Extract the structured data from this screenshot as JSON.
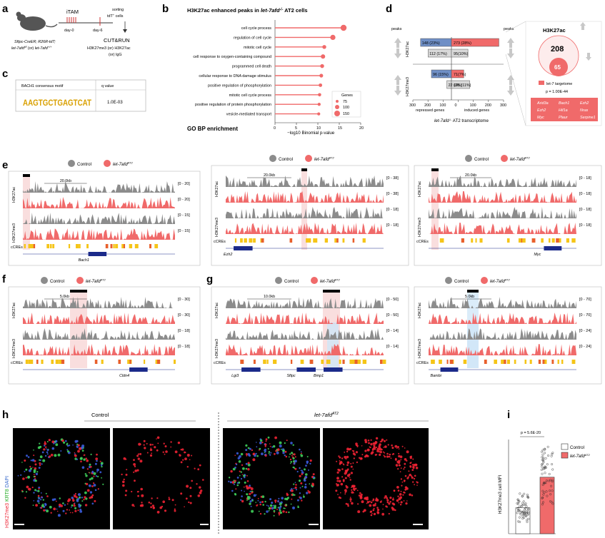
{
  "panels": {
    "a": "a",
    "b": "b",
    "c": "c",
    "d": "d",
    "e": "e",
    "f": "f",
    "g": "g",
    "h": "h",
    "i": "i"
  },
  "a": {
    "itam": "iTAM",
    "day0": "day-0",
    "day6": "day-6",
    "sorting": "sorting",
    "cells": "tdT",
    "cells_sup": "+",
    "cells_tail": " cells",
    "geno1": "Sftpc-CreER; R26R-tdT;",
    "geno2_a": "let-7afd",
    "geno2_b": " (or) ",
    "geno2_c": "let-7afd",
    "geno_sup1": "f/f",
    "geno_sup2": "+/+",
    "cutrun": "CUT&RUN",
    "marks": "H3K27me3 (or) H3K27ac",
    "igg": "(or) IgG"
  },
  "b": {
    "title_a": "H3K27ac enhanced peaks in ",
    "title_b": "let-7afd",
    "title_sup": "-/-",
    "title_c": " AT2 cells",
    "xlabel": "−log10 Binomial p-value",
    "xlabel2": "GO BP enrichment",
    "legend_title": "Genes",
    "legend_vals": [
      "75",
      "100",
      "150"
    ],
    "xticks": [
      "0",
      "5",
      "10",
      "15",
      "20"
    ]
  },
  "b_chart": {
    "chart_data": {
      "type": "lollipop",
      "title": "H3K27ac enhanced peaks in let-7afd-/- AT2 cells",
      "xlabel": "-log10 Binomial p-value",
      "xlim": [
        0,
        20
      ],
      "categories": [
        "cell cycle process",
        "regulation of cell cycle",
        "mitotic cell cycle",
        "cell response to oxygen-containing compound",
        "programmed cell death",
        "cellular response to DNA damage stimulus",
        "positive regulation of phosphorylation",
        "mitotic cell cycle process",
        "positive regulation of protein phosphorylation",
        "vesicle-mediated transport"
      ],
      "values": [
        16.0,
        13.5,
        11.5,
        11.2,
        11.0,
        10.8,
        10.6,
        10.4,
        10.3,
        10.2
      ],
      "sizes": [
        150,
        130,
        100,
        110,
        100,
        95,
        90,
        85,
        80,
        80
      ]
    }
  },
  "c": {
    "motif_header": "BACH1 consensus motif",
    "q_header": "q value",
    "q_value": "1.0E-03",
    "motif_seq": "AAGTGCTGAGTCAT"
  },
  "d": {
    "peaks_left": "peaks",
    "peaks_right": "peaks",
    "h3k27ac": "H3K27ac",
    "h3k27me3": "H3K27me3",
    "repressed": "repressed genes",
    "induced": "induced genes",
    "xticks": [
      "300",
      "200",
      "100",
      "0",
      "100",
      "200",
      "300"
    ],
    "transcriptome_a": "let-7afd",
    "transcriptome_sup": "-/-",
    "transcriptome_b": " AT2 transcriptome",
    "venn_title": "H3K27ac",
    "venn_big": "208",
    "venn_small": "65",
    "legend_target": "let-7 targetome",
    "pvalue": "p = 1.00E-44",
    "genes": [
      "Arid3a",
      "Bach1",
      "Ezh2",
      "Ezh2",
      "Hif1a",
      "Nras",
      "Myc",
      "Plaur",
      "Serpine1"
    ]
  },
  "d_chart": {
    "chart_data": {
      "type": "bar",
      "rows": [
        {
          "mark": "H3K27ac",
          "peaks": "up",
          "repressed": 148,
          "repressed_label": "148 (23%)",
          "induced": 273,
          "induced_label": "273 (28%)"
        },
        {
          "mark": "H3K27ac",
          "peaks": "down",
          "repressed": 112,
          "repressed_label": "112 (17%)",
          "induced": 95,
          "induced_label": "95(10%)"
        },
        {
          "mark": "H3K27me3",
          "peaks": "up",
          "repressed": 96,
          "repressed_label": "96 (15%)",
          "induced": 71,
          "induced_label": "71(7%)"
        },
        {
          "mark": "H3K27me3",
          "peaks": "down",
          "repressed": 22,
          "repressed_label": "22 (3%)",
          "induced": 105,
          "induced_label": "105 (11%)"
        }
      ],
      "xlim": [
        -300,
        300
      ]
    }
  },
  "tracks": {
    "control": "Control",
    "mutant": "let-7afd",
    "mutant_sup": "AT2",
    "h3k27ac": "H3K27ac",
    "h3k27me3": "H3K27me3",
    "ccres": "cCREs",
    "e1": {
      "scale": "20.0kb",
      "r": [
        "[0 - 20]",
        "[0 - 20]",
        "[0 - 15]",
        "[0 - 15]"
      ],
      "gene": "Bach1"
    },
    "e2": {
      "scale": "20.0kb",
      "r": [
        "[0 - 38]",
        "[0 - 38]",
        "[0 - 18]",
        "[0 - 18]"
      ],
      "gene": "Ezh2"
    },
    "e3": {
      "scale": "20.0kb",
      "r": [
        "[0 - 18]",
        "[0 - 18]",
        "[0 - 18]",
        "[0 - 18]"
      ],
      "gene": "Myc"
    },
    "f1": {
      "scale": "5.0kb",
      "r": [
        "[0 - 30]",
        "[0 - 30]",
        "[0 - 18]",
        "[0 - 18]"
      ],
      "gene": "Cldn4"
    },
    "g1": {
      "scale": "10.0kb",
      "r": [
        "[0 - 50]",
        "[0 - 50]",
        "[0 - 14]",
        "[0 - 14]"
      ],
      "gene1": "Lgi3",
      "gene2": "Sftpc",
      "gene3": "Bmp1"
    },
    "g2": {
      "scale": "5.0kb",
      "r": [
        "[0 - 70]",
        "[0 - 70]",
        "[0 - 24]",
        "[0 - 24]"
      ],
      "gene": "Bambi"
    }
  },
  "h": {
    "control": "Control",
    "mutant": "let-7afd",
    "mutant_sup": "AT2",
    "ylabel_a": "H3K27me3",
    "ylabel_b": " KRT8 ",
    "ylabel_c": "DAPI"
  },
  "i": {
    "ylabel": "H3K27me3 cell MFI",
    "pvalue": "p = 5.6E-20",
    "legend_control": "Control",
    "legend_mutant": "let-7afd",
    "legend_sup": "AT2",
    "chart_data": {
      "type": "bar",
      "categories": [
        "Control",
        "let-7afd AT2"
      ],
      "values": [
        55,
        120
      ],
      "ylim": [
        0,
        200
      ]
    }
  },
  "colors": {
    "grey": "#8c8c8c",
    "red": "#f06a6a",
    "blue": "#6f8fc6",
    "navy": "#1b2a8a",
    "yellow": "#f5c518"
  }
}
